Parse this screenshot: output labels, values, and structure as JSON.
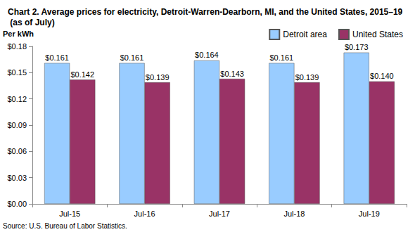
{
  "chart_data": {
    "type": "bar",
    "title": "Chart 2. Average prices for electricity, Detroit-Warren-Dearborn, MI, and the United States, 2015–19  (as of July)",
    "y_label": "Per kWh",
    "source": "Source: U.S. Bureau of Labor Statistics.",
    "categories": [
      "Jul-15",
      "Jul-16",
      "Jul-17",
      "Jul-18",
      "Jul-19"
    ],
    "series": [
      {
        "name": "Detroit area",
        "color": "#99ccff",
        "values": [
          0.161,
          0.161,
          0.164,
          0.161,
          0.173
        ],
        "value_labels": [
          "$0.161",
          "$0.161",
          "$0.164",
          "$0.161",
          "$0.173"
        ]
      },
      {
        "name": "United States",
        "color": "#993366",
        "values": [
          0.142,
          0.139,
          0.143,
          0.139,
          0.14
        ],
        "value_labels": [
          "$0.142",
          "$0.139",
          "$0.143",
          "$0.139",
          "$0.140"
        ]
      }
    ],
    "ylim": [
      0,
      0.18
    ],
    "yticks": [
      {
        "value": 0,
        "label": "$0.00"
      },
      {
        "value": 0.03,
        "label": "$0.03"
      },
      {
        "value": 0.06,
        "label": "$0.06"
      },
      {
        "value": 0.09,
        "label": "$0.09"
      },
      {
        "value": 0.12,
        "label": "$0.12"
      },
      {
        "value": 0.15,
        "label": "$0.15"
      },
      {
        "value": 0.18,
        "label": "$0.18"
      }
    ],
    "grid": false,
    "legend": "top-right",
    "data_labels": true
  }
}
